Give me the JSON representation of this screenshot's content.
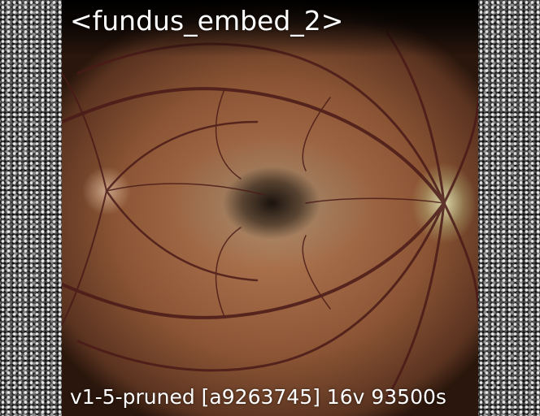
{
  "title": "<fundus_embed_2>",
  "footer": "v1-5-pruned [a9263745]  16v 93500s"
}
